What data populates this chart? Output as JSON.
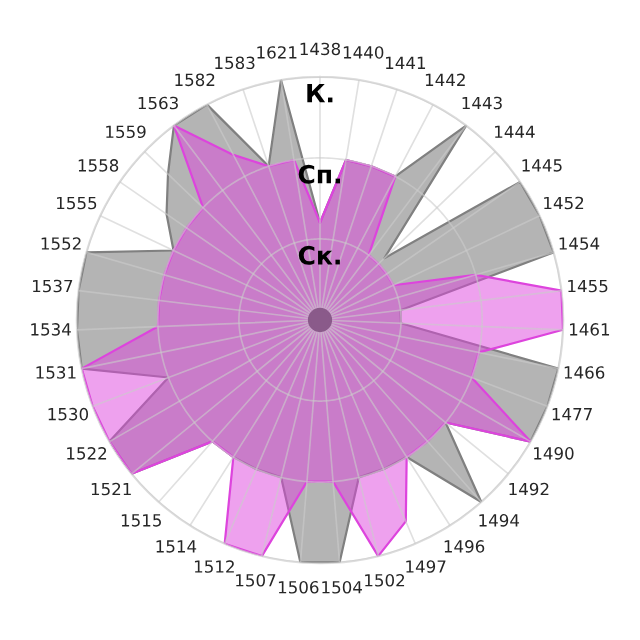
{
  "chart_data": {
    "type": "radar",
    "categories": [
      "1438",
      "1440",
      "1441",
      "1442",
      "1443",
      "1444",
      "1445",
      "1452",
      "1454",
      "1455",
      "1461",
      "1466",
      "1477",
      "1490",
      "1492",
      "1494",
      "1496",
      "1497",
      "1502",
      "1504",
      "1506",
      "1507",
      "1512",
      "1514",
      "1515",
      "1521",
      "1522",
      "1530",
      "1531",
      "1534",
      "1537",
      "1552",
      "1555",
      "1558",
      "1559",
      "1563",
      "1582",
      "1583",
      "1621"
    ],
    "ylim": [
      0,
      3
    ],
    "yticks": [
      {
        "value": 1,
        "label": "Ск."
      },
      {
        "value": 2,
        "label": "Сп."
      },
      {
        "value": 3,
        "label": "К."
      }
    ],
    "grid": true,
    "legend": false,
    "series": [
      {
        "color": "#b4b4b4",
        "values": [
          1.2,
          2,
          2,
          2,
          3,
          1.1,
          3,
          3,
          3,
          1,
          1,
          3,
          3,
          3,
          2,
          3,
          2,
          2,
          2,
          3,
          3,
          2,
          2,
          2,
          2,
          3,
          3,
          2,
          3,
          3,
          3,
          3,
          2,
          2.3,
          2.6,
          3,
          3,
          2,
          3
        ]
      },
      {
        "color": "#dd44dd",
        "values": [
          1.2,
          2,
          2,
          2,
          1,
          1,
          1,
          1,
          2,
          3,
          3,
          2,
          2,
          3,
          2,
          2,
          2,
          2.7,
          3,
          2,
          2,
          3,
          3,
          2,
          2,
          3,
          3,
          3,
          3,
          2,
          2,
          2,
          2,
          2,
          2,
          3,
          2.3,
          2,
          2
        ]
      }
    ]
  }
}
